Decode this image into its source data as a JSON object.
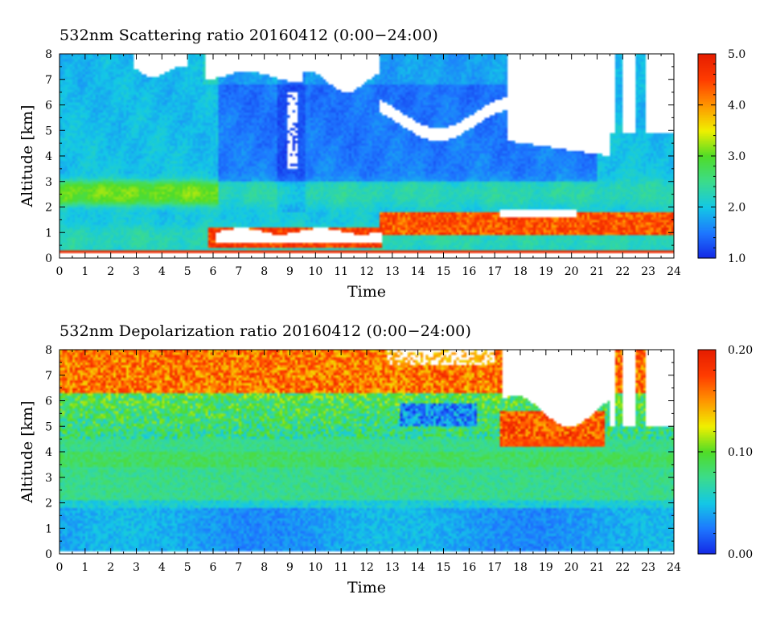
{
  "chart_data": [
    {
      "type": "heatmap",
      "title": "532nm Scattering ratio  20160412 (0:00−24:00)",
      "xlabel": "Time",
      "ylabel": "Altitude [km]",
      "xlim": [
        0,
        24
      ],
      "ylim": [
        0,
        8
      ],
      "x_ticks": [
        "0",
        "1",
        "2",
        "3",
        "4",
        "5",
        "6",
        "7",
        "8",
        "9",
        "10",
        "11",
        "12",
        "13",
        "14",
        "15",
        "16",
        "17",
        "18",
        "19",
        "20",
        "21",
        "22",
        "23",
        "24"
      ],
      "y_ticks": [
        "0",
        "1",
        "2",
        "3",
        "4",
        "5",
        "6",
        "7",
        "8"
      ],
      "colorbar": {
        "min": 1.0,
        "max": 5.0,
        "ticks": [
          "1.0",
          "2.0",
          "3.0",
          "4.0",
          "5.0"
        ]
      },
      "colors": [
        "#1428e6",
        "#1e78ff",
        "#14c8e6",
        "#3cdc8c",
        "#50dc28",
        "#f0f000",
        "#ff9600",
        "#ff3c00",
        "#e61e00"
      ],
      "features": {
        "boundary_layer_aerosol": {
          "altitude_km": [
            0.3,
            1.2
          ],
          "value": 2.2
        },
        "elevated_aerosol_layer": {
          "time_h": [
            0,
            6
          ],
          "altitude_km": [
            2.0,
            3.0
          ],
          "value": 3.0
        },
        "dense_layer_no_signal": {
          "time_h": [
            6,
            12.5
          ],
          "altitude_km": [
            0.5,
            1.1
          ]
        },
        "cloud_layer": {
          "time_h": [
            12,
            24
          ],
          "altitude_km": [
            1.0,
            1.9
          ],
          "value": 4.6
        },
        "upper_cloud_no_signal": {
          "time_h": [
            12.5,
            24
          ],
          "altitude_km": [
            5.0,
            8.0
          ]
        }
      }
    },
    {
      "type": "heatmap",
      "title": "532nm Depolarization ratio  20160412 (0:00−24:00)",
      "xlabel": "Time",
      "ylabel": "Altitude [km]",
      "xlim": [
        0,
        24
      ],
      "ylim": [
        0,
        8
      ],
      "x_ticks": [
        "0",
        "1",
        "2",
        "3",
        "4",
        "5",
        "6",
        "7",
        "8",
        "9",
        "10",
        "11",
        "12",
        "13",
        "14",
        "15",
        "16",
        "17",
        "18",
        "19",
        "20",
        "21",
        "22",
        "23",
        "24"
      ],
      "y_ticks": [
        "0",
        "1",
        "2",
        "3",
        "4",
        "5",
        "6",
        "7",
        "8"
      ],
      "colorbar": {
        "min": 0.0,
        "max": 0.2,
        "ticks": [
          "0.00",
          "0.10",
          "0.20"
        ]
      },
      "colors": [
        "#1428e6",
        "#1e78ff",
        "#14c8e6",
        "#3cdc8c",
        "#50dc28",
        "#f0f000",
        "#ff9600",
        "#ff3c00",
        "#e61e00"
      ],
      "features": {
        "low_depol_layer": {
          "altitude_km": [
            0.2,
            1.8
          ],
          "value": 0.04
        },
        "mid_troposphere": {
          "altitude_km": [
            1.8,
            6.0
          ],
          "value": 0.08
        },
        "upper_high_depol": {
          "altitude_km": [
            6.5,
            8.0
          ],
          "value": 0.18
        },
        "cloud_low_depol": {
          "time_h": [
            13.3,
            16
          ],
          "altitude_km": [
            5.0,
            5.8
          ],
          "value": 0.03
        }
      }
    }
  ]
}
